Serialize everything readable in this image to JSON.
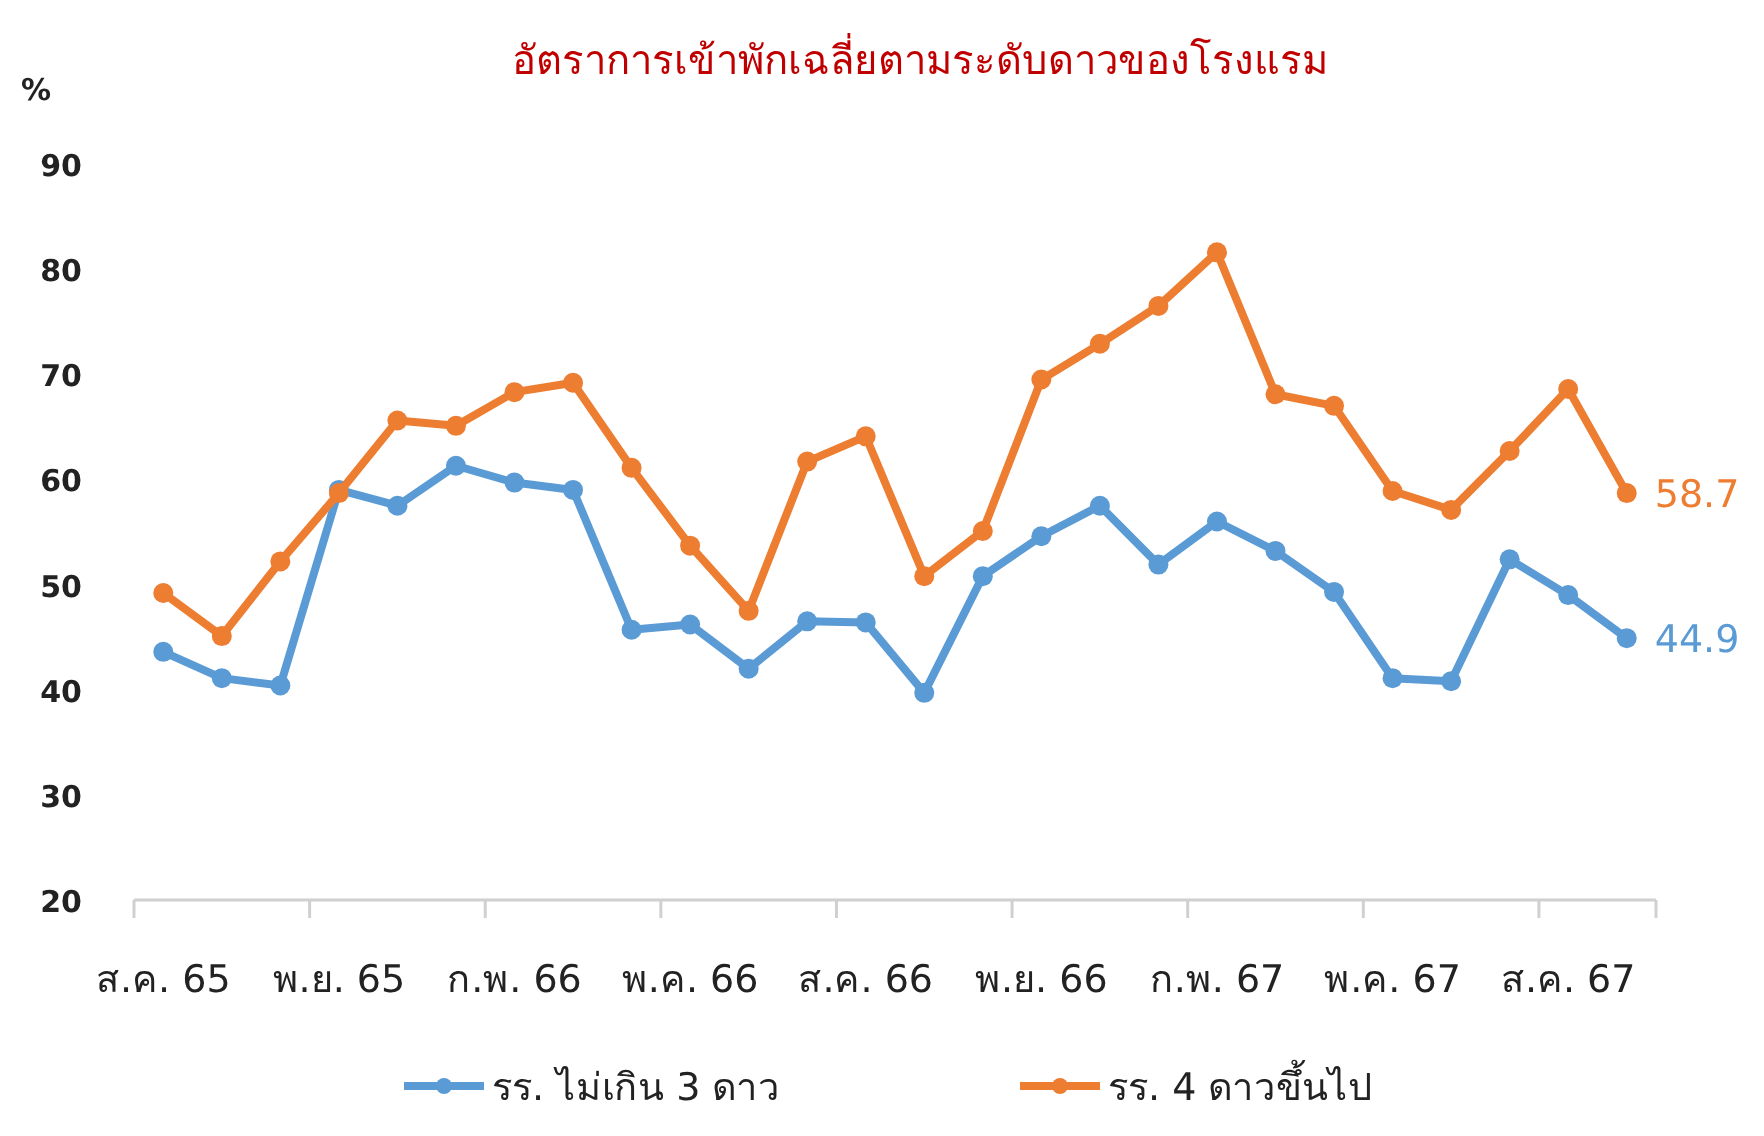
{
  "chart_data": {
    "type": "line",
    "title": "อัตราการเข้าพักเฉลี่ยตามระดับดาวของโรงแรม",
    "ylabel": "%",
    "categories": [
      "ส.ค. 65",
      null,
      null,
      "พ.ย. 65",
      null,
      null,
      "ก.พ. 66",
      null,
      null,
      "พ.ค. 66",
      null,
      null,
      "ส.ค. 66",
      null,
      null,
      "พ.ย. 66",
      null,
      null,
      "ก.พ. 67",
      null,
      null,
      "พ.ค. 67",
      null,
      null,
      "ส.ค. 67",
      null
    ],
    "series": [
      {
        "name": "รร. ไม่เกิน 3 ดาว",
        "color": "#5b9bd5",
        "values": [
          43.6,
          41.1,
          40.4,
          59.0,
          57.5,
          61.3,
          59.7,
          59.0,
          45.7,
          46.2,
          42.0,
          46.5,
          46.4,
          39.7,
          50.8,
          54.6,
          57.5,
          51.9,
          56.0,
          53.2,
          49.3,
          41.1,
          40.8,
          52.4,
          49.0,
          44.9
        ],
        "value_labels": [
          null,
          null,
          null,
          null,
          null,
          null,
          null,
          null,
          null,
          null,
          null,
          null,
          null,
          null,
          null,
          null,
          null,
          null,
          null,
          null,
          null,
          null,
          null,
          null,
          null,
          "44.9"
        ]
      },
      {
        "name": "รร. 4 ดาวขึ้นไป",
        "color": "#ed7d31",
        "values": [
          49.2,
          45.1,
          52.2,
          58.7,
          65.6,
          65.1,
          68.3,
          69.2,
          61.1,
          53.7,
          47.5,
          61.7,
          64.1,
          50.8,
          55.1,
          69.5,
          72.9,
          76.5,
          81.6,
          68.1,
          67.0,
          58.9,
          57.1,
          62.7,
          68.6,
          58.7
        ],
        "value_labels": [
          null,
          null,
          null,
          null,
          null,
          null,
          null,
          null,
          null,
          null,
          null,
          null,
          null,
          null,
          null,
          null,
          null,
          null,
          null,
          null,
          null,
          null,
          null,
          null,
          null,
          "58.7"
        ]
      }
    ],
    "ylim": [
      20,
      90
    ],
    "yticks": [
      20,
      30,
      40,
      50,
      60,
      70,
      80,
      90
    ],
    "marker": "circle",
    "line_style": "solid",
    "grid": false,
    "legend": "bottom"
  }
}
